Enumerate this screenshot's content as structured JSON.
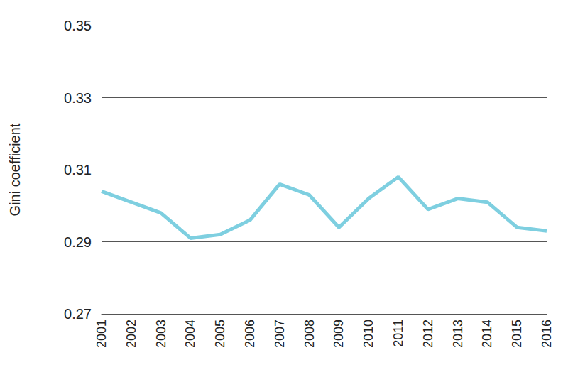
{
  "chart_data": {
    "type": "line",
    "y_label": "Gini coefficient",
    "categories": [
      "2001",
      "2002",
      "2003",
      "2004",
      "2005",
      "2006",
      "2007",
      "2008",
      "2009",
      "2010",
      "2011",
      "2012",
      "2013",
      "2014",
      "2015",
      "2016"
    ],
    "values": [
      0.304,
      0.301,
      0.298,
      0.291,
      0.292,
      0.296,
      0.306,
      0.303,
      0.294,
      0.302,
      0.308,
      0.299,
      0.302,
      0.301,
      0.294,
      0.293
    ],
    "color": "#7ecfe0",
    "ylim": [
      0.27,
      0.35
    ],
    "yticks": [
      0.27,
      0.29,
      0.31,
      0.33,
      0.35
    ],
    "grid": true
  }
}
